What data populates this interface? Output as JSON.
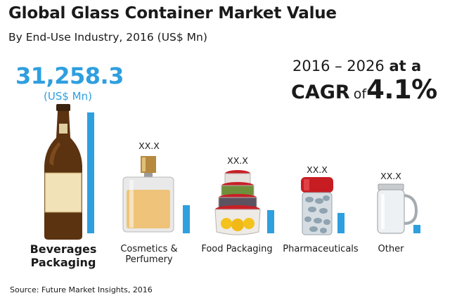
{
  "header": {
    "title": "Global Glass Container Market Value",
    "subtitle": "By End-Use Industry, 2016 (US$ Mn)"
  },
  "cagr": {
    "period": "2016 – 2026",
    "at": "at a",
    "label": "CAGR",
    "of": "of",
    "value": "4.1%"
  },
  "highlight": {
    "value": "31,258.3",
    "unit": "(US$ Mn)"
  },
  "source": "Source: Future Market Insights, 2016",
  "colors": {
    "bar": "#2e9fdf",
    "accent_text": "#2e9fdf"
  },
  "chart_data": {
    "type": "bar",
    "categories": [
      "Beverages Packaging",
      "Cosmetics & Perfumery",
      "Food Packaging",
      "Pharmaceuticals",
      "Other"
    ],
    "values": [
      31258.3,
      null,
      null,
      null,
      null
    ],
    "data_labels": [
      "31,258.3",
      "XX.X",
      "XX.X",
      "XX.X",
      "XX.X"
    ],
    "relative_bar_heights": [
      1.0,
      0.23,
      0.19,
      0.17,
      0.07
    ],
    "ylabel": "",
    "grid": false,
    "legend": "none",
    "icons": [
      "beer-bottle-icon",
      "perfume-bottle-icon",
      "food-container-stack-icon",
      "pill-jar-icon",
      "mason-jar-mug-icon"
    ]
  }
}
